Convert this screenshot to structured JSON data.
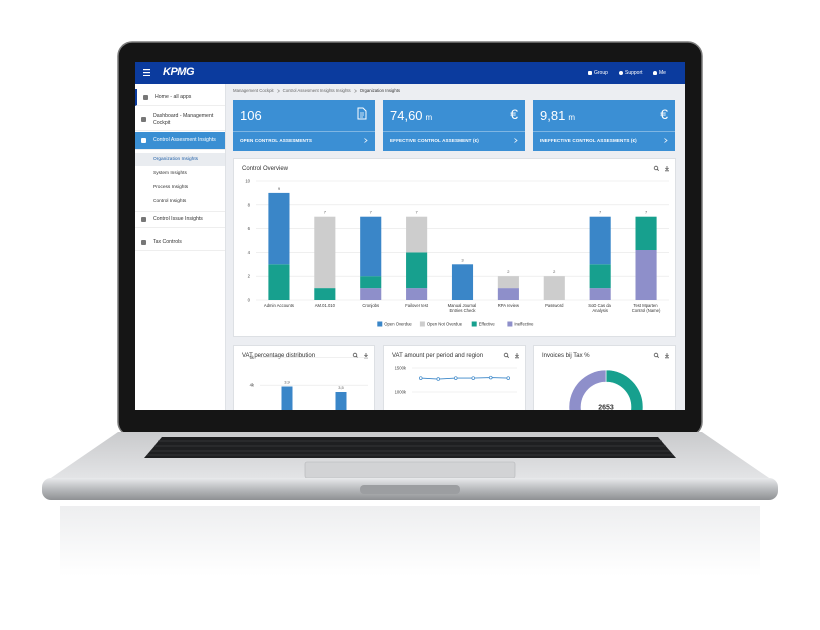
{
  "header": {
    "brand": "KPMG",
    "nav": [
      "Group",
      "Support",
      "Me"
    ]
  },
  "sidebar": {
    "items": [
      "Home - all apps",
      "Dashboard - Management Cockpit",
      "Control Assesment Insights",
      "Control Issue Insights",
      "Tax Controls"
    ],
    "subitems": [
      "Organization Insights",
      "System Insights",
      "Process Insights",
      "Control Insights"
    ]
  },
  "breadcrumb": [
    "Management Cockpit",
    "Control Assesment Insights Insights",
    "Organization Insights"
  ],
  "kpis": [
    {
      "value": "106",
      "label": "OPEN CONTROL ASSESMENTS"
    },
    {
      "value": "74,60",
      "unit": "m",
      "icon": "€",
      "label": "EFFECTIVE CONTROL ASSESMENT (€)"
    },
    {
      "value": "9,81",
      "unit": "m",
      "icon": "€",
      "label": "INEFFECTIVE CONTROL ASSESMENTS (€)"
    }
  ],
  "chart_data": [
    {
      "type": "bar",
      "stacked": true,
      "title": "Control Overview",
      "categories": [
        "Admin Accounts",
        "AM.01.010",
        "Cronjobs",
        "Failover test",
        "Manual Journal Entries Check",
        "RPA review",
        "Password",
        "SoD Cas da Analysis",
        "Test Mparten Control (Name)"
      ],
      "series": [
        {
          "name": "Open Overdue",
          "color": "#3a86c8",
          "values": [
            6,
            0,
            5,
            0,
            3,
            0,
            0,
            4,
            0
          ]
        },
        {
          "name": "Open Not Overdue",
          "color": "#cdcdcd",
          "values": [
            0,
            6,
            0,
            3,
            0,
            1,
            2,
            0,
            0
          ]
        },
        {
          "name": "Effective",
          "color": "#17a08e",
          "values": [
            3,
            1,
            1,
            3,
            0,
            0,
            0,
            2,
            2.8
          ]
        },
        {
          "name": "Ineffective",
          "color": "#8e8fca",
          "values": [
            0,
            0,
            1,
            1,
            0,
            1,
            0,
            1,
            4.2
          ]
        }
      ],
      "totals": [
        9,
        7,
        7,
        7,
        3,
        2,
        2,
        7,
        7
      ],
      "ylim": [
        0,
        10
      ],
      "yticks": [
        0,
        2,
        4,
        6,
        8,
        10
      ],
      "grid": true,
      "legend": "bottom"
    },
    {
      "type": "bar",
      "title": "VAT percentage distribution",
      "categories": [
        null,
        null
      ],
      "values": [
        3900,
        3500
      ],
      "value_labels": [
        "3,9",
        "3,5"
      ],
      "color": "#3a86c8",
      "ylim": [
        0,
        7000
      ],
      "yticks": [
        {
          "value": 4000,
          "label": "4k"
        },
        {
          "value": 6000,
          "label": "6k"
        }
      ],
      "grid": true
    },
    {
      "type": "line",
      "title": "VAT amount per period and region",
      "categories": [
        null,
        null,
        null,
        null,
        null,
        null
      ],
      "values": [
        1290000,
        1270000,
        1290000,
        1290000,
        1300000,
        1290000
      ],
      "color": "#3a86c8",
      "ylim": [
        0,
        1500000
      ],
      "yticks": [
        {
          "value": 1000000,
          "label": "1000k"
        },
        {
          "value": 1500000,
          "label": "1500k"
        }
      ],
      "grid": true
    },
    {
      "type": "donut",
      "title": "Invoices bij Tax %",
      "center_label": "2653",
      "values": [
        50,
        22,
        28
      ],
      "colors": [
        "#17a08e",
        "#3a86c8",
        "#8e8fca"
      ]
    }
  ]
}
